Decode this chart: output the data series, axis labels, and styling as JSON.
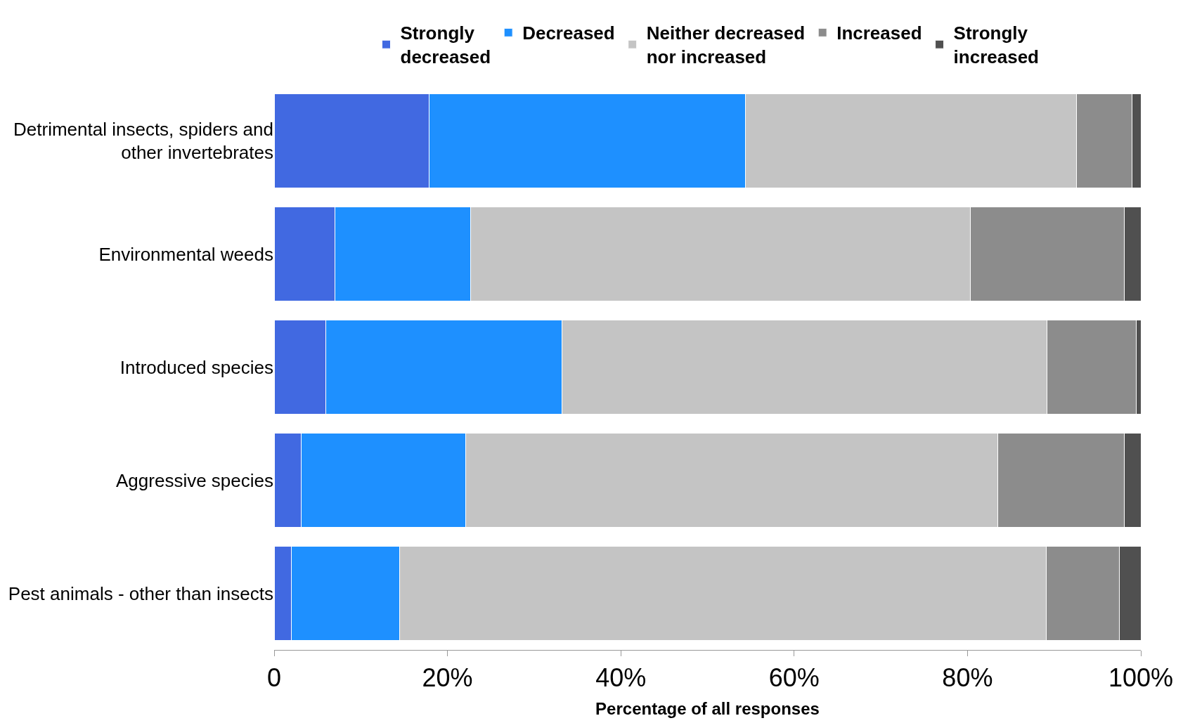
{
  "chart_data": {
    "type": "bar",
    "orientation": "horizontal",
    "stacked": true,
    "xlabel": "Percentage of all responses",
    "categories": [
      "Detrimental insects, spiders and other invertebrates",
      "Environmental weeds",
      "Introduced species",
      "Aggressive species",
      "Pest animals - other than insects"
    ],
    "series": [
      {
        "name": "Strongly decreased",
        "color": "#4169e1",
        "values": [
          17.9,
          7.0,
          6.0,
          3.1,
          2.0
        ]
      },
      {
        "name": "Decreased",
        "color": "#1e90ff",
        "values": [
          36.5,
          15.7,
          27.2,
          19.0,
          12.5
        ]
      },
      {
        "name": "Neither decreased nor increased",
        "color": "#c4c4c4",
        "values": [
          38.2,
          57.6,
          56.0,
          61.4,
          74.6
        ]
      },
      {
        "name": "Increased",
        "color": "#8c8c8c",
        "values": [
          6.4,
          17.8,
          10.3,
          14.6,
          8.4
        ]
      },
      {
        "name": "Strongly increased",
        "color": "#505050",
        "values": [
          1.0,
          1.9,
          0.5,
          1.9,
          2.5
        ]
      }
    ],
    "xlim": [
      0,
      100
    ],
    "xticks": [
      0,
      {
        "value": 20,
        "label": "20%"
      },
      {
        "value": 40,
        "label": "40%"
      },
      {
        "value": 60,
        "label": "60%"
      },
      {
        "value": 80,
        "label": "80%"
      },
      {
        "value": 100,
        "label": "100%"
      }
    ],
    "legend": "top"
  }
}
